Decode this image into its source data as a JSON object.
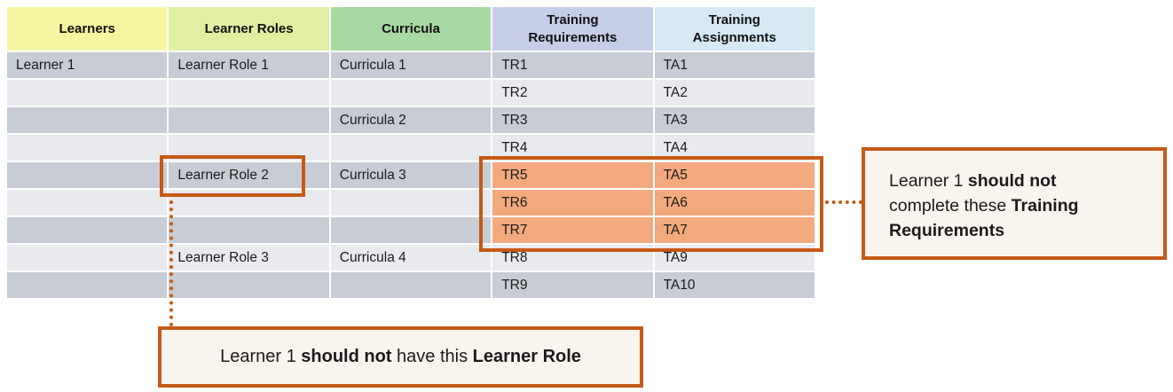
{
  "colors": {
    "accent_border": "#C45A16",
    "highlight_fill": "#F3A97E",
    "callout_bg": "#FAF4EF",
    "row_dark": "#C8CCD4",
    "row_light": "#E8EAED",
    "header_learners": "#F6F6A2",
    "header_learner_roles": "#E1EFA3",
    "header_curricula": "#A7D9A2",
    "header_training_requirements": "#C5CDE9",
    "header_training_assignments": "#D6E9F5"
  },
  "table": {
    "headers": [
      {
        "label": "Learners",
        "color": "#F6F6A2"
      },
      {
        "label": "Learner Roles",
        "color": "#E1EFA3"
      },
      {
        "label": "Curricula",
        "color": "#A7D9A2"
      },
      {
        "label": "Training Requirements",
        "color": "#C5CDE9"
      },
      {
        "label": "Training Assignments",
        "color": "#D6E9F5"
      }
    ],
    "rows": [
      {
        "cells": [
          "Learner 1",
          "Learner Role 1",
          "Curricula 1",
          "TR1",
          "TA1"
        ],
        "shade": "dark",
        "highlight": []
      },
      {
        "cells": [
          "",
          "",
          "",
          "TR2",
          "TA2"
        ],
        "shade": "light",
        "highlight": []
      },
      {
        "cells": [
          "",
          "",
          "Curricula 2",
          "TR3",
          "TA3"
        ],
        "shade": "dark",
        "highlight": []
      },
      {
        "cells": [
          "",
          "",
          "",
          "TR4",
          "TA4"
        ],
        "shade": "light",
        "highlight": []
      },
      {
        "cells": [
          "",
          "Learner Role 2",
          "Curricula 3",
          "TR5",
          "TA5"
        ],
        "shade": "dark",
        "highlight": [
          3,
          4
        ]
      },
      {
        "cells": [
          "",
          "",
          "",
          "TR6",
          "TA6"
        ],
        "shade": "light",
        "highlight": [
          3,
          4
        ]
      },
      {
        "cells": [
          "",
          "",
          "",
          "TR7",
          "TA7"
        ],
        "shade": "dark",
        "highlight": [
          3,
          4
        ]
      },
      {
        "cells": [
          "",
          "Learner Role 3",
          "Curricula 4",
          "TR8",
          "TA9"
        ],
        "shade": "light",
        "highlight": []
      },
      {
        "cells": [
          "",
          "",
          "",
          "TR9",
          "TA10"
        ],
        "shade": "dark",
        "highlight": []
      }
    ]
  },
  "callouts": {
    "right": {
      "lines": [
        [
          {
            "text": "Learner 1 ",
            "bold": false
          },
          {
            "text": "should not",
            "bold": true
          }
        ],
        [
          {
            "text": "complete these ",
            "bold": false
          },
          {
            "text": "Training",
            "bold": true
          }
        ],
        [
          {
            "text": "Requirements",
            "bold": true
          }
        ]
      ]
    },
    "bottom": {
      "lines": [
        [
          {
            "text": "Learner 1 ",
            "bold": false
          },
          {
            "text": "should not",
            "bold": true
          },
          {
            "text": " have this ",
            "bold": false
          },
          {
            "text": "Learner Role",
            "bold": true
          }
        ]
      ]
    }
  }
}
